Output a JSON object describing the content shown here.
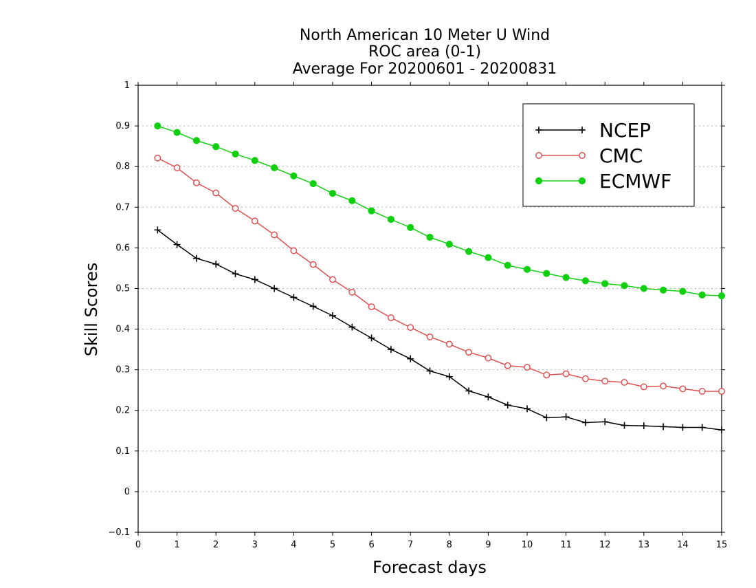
{
  "chart_data": {
    "type": "line",
    "title_lines": [
      "North American 10 Meter U Wind",
      "ROC area (0-1)",
      "Average For 20200601 - 20200831"
    ],
    "xlabel": "Forecast days",
    "ylabel": "Skill Scores",
    "xlim": [
      0,
      15
    ],
    "ylim": [
      -0.1,
      1
    ],
    "xticks": [
      "0",
      "1",
      "2",
      "3",
      "4",
      "5",
      "6",
      "7",
      "8",
      "9",
      "10",
      "11",
      "12",
      "13",
      "14",
      "15"
    ],
    "yticks": [
      "−0.1",
      "0",
      "0.1",
      "0.2",
      "0.3",
      "0.4",
      "0.5",
      "0.6",
      "0.7",
      "0.8",
      "0.9",
      "1"
    ],
    "grid": true,
    "legend_position": "top-right",
    "x": [
      0.5,
      1,
      1.5,
      2,
      2.5,
      3,
      3.5,
      4,
      4.5,
      5,
      5.5,
      6,
      6.5,
      7,
      7.5,
      8,
      8.5,
      9,
      9.5,
      10,
      10.5,
      11,
      11.5,
      12,
      12.5,
      13,
      13.5,
      14,
      14.5,
      15
    ],
    "series": [
      {
        "name": "NCEP",
        "color": "#000000",
        "marker": "plus",
        "values": [
          0.644,
          0.608,
          0.574,
          0.56,
          0.536,
          0.522,
          0.5,
          0.478,
          0.456,
          0.433,
          0.405,
          0.378,
          0.35,
          0.327,
          0.297,
          0.283,
          0.248,
          0.233,
          0.213,
          0.204,
          0.182,
          0.184,
          0.17,
          0.172,
          0.163,
          0.162,
          0.16,
          0.158,
          0.158,
          0.152
        ]
      },
      {
        "name": "CMC",
        "color": "#e05050",
        "marker": "open-circle",
        "values": [
          0.821,
          0.797,
          0.76,
          0.735,
          0.697,
          0.666,
          0.632,
          0.593,
          0.559,
          0.522,
          0.491,
          0.455,
          0.428,
          0.404,
          0.381,
          0.363,
          0.343,
          0.329,
          0.31,
          0.306,
          0.287,
          0.29,
          0.278,
          0.272,
          0.269,
          0.258,
          0.26,
          0.253,
          0.247,
          0.247
        ]
      },
      {
        "name": "ECMWF",
        "color": "#10d010",
        "marker": "filled-circle",
        "values": [
          0.9,
          0.884,
          0.864,
          0.849,
          0.831,
          0.815,
          0.797,
          0.777,
          0.758,
          0.734,
          0.716,
          0.691,
          0.67,
          0.65,
          0.626,
          0.609,
          0.591,
          0.576,
          0.557,
          0.547,
          0.537,
          0.527,
          0.519,
          0.512,
          0.507,
          0.5,
          0.496,
          0.493,
          0.484,
          0.482
        ]
      }
    ]
  }
}
